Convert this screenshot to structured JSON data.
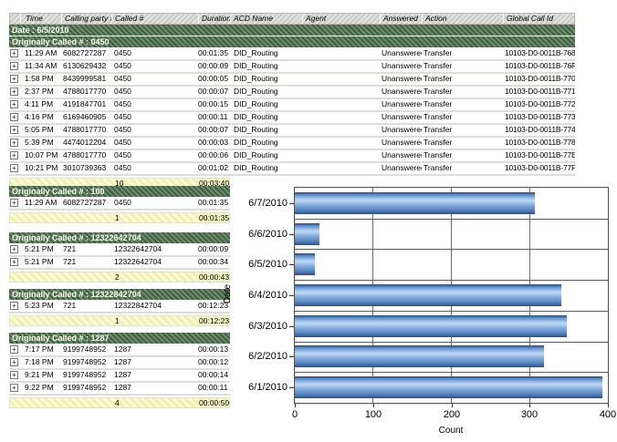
{
  "table": {
    "columns": [
      "Time",
      "Calling party #",
      "Called #",
      "Duration",
      "ACD Name",
      "Agent",
      "Answered",
      "Action",
      "Global Call Id"
    ],
    "date_band": "Date : 6/5/2010",
    "groups": [
      {
        "band": "Originally Called # : 0450",
        "full": true,
        "rows": [
          {
            "time": "11:29 AM",
            "calling": "6082727287",
            "called": "0450",
            "duration": "00:01:35",
            "acd": "DID_Routing",
            "agent": "",
            "answered": "Unanswered",
            "action": "Transfer",
            "global_id": "10103-D0-0011B-768"
          },
          {
            "time": "11:34 AM",
            "calling": "6130629432",
            "called": "0450",
            "duration": "00:00:09",
            "acd": "DID_Routing",
            "agent": "",
            "answered": "Unanswered",
            "action": "Transfer",
            "global_id": "10103-D0-0011B-76F"
          },
          {
            "time": "1:58 PM",
            "calling": "8439999581",
            "called": "0450",
            "duration": "00:00:05",
            "acd": "DID_Routing",
            "agent": "",
            "answered": "Unanswered",
            "action": "Transfer",
            "global_id": "10103-D0-0011B-770"
          },
          {
            "time": "2:37 PM",
            "calling": "4788017770",
            "called": "0450",
            "duration": "00:00:07",
            "acd": "DID_Routing",
            "agent": "",
            "answered": "Unanswered",
            "action": "Transfer",
            "global_id": "10103-D0-0011B-771"
          },
          {
            "time": "4:11 PM",
            "calling": "4191847701",
            "called": "0450",
            "duration": "00:00:15",
            "acd": "DID_Routing",
            "agent": "",
            "answered": "Unanswered",
            "action": "Transfer",
            "global_id": "10103-D0-0011B-772"
          },
          {
            "time": "4:16 PM",
            "calling": "6169460905",
            "called": "0450",
            "duration": "00:00:11",
            "acd": "DID_Routing",
            "agent": "",
            "answered": "Unanswered",
            "action": "Transfer",
            "global_id": "10103-D0-0011B-773"
          },
          {
            "time": "5:05 PM",
            "calling": "4788017770",
            "called": "0450",
            "duration": "00:00:07",
            "acd": "DID_Routing",
            "agent": "",
            "answered": "Unanswered",
            "action": "Transfer",
            "global_id": "10103-D0-0011B-774"
          },
          {
            "time": "5:39 PM",
            "calling": "4474012204",
            "called": "0450",
            "duration": "00:00:03",
            "acd": "DID_Routing",
            "agent": "",
            "answered": "Unanswered",
            "action": "Transfer",
            "global_id": "10103-D0-0011B-778"
          },
          {
            "time": "10:07 PM",
            "calling": "4788017770",
            "called": "0450",
            "duration": "00:00:06",
            "acd": "DID_Routing",
            "agent": "",
            "answered": "Unanswered",
            "action": "Transfer",
            "global_id": "10103-D0-0011B-77E"
          },
          {
            "time": "10:21 PM",
            "calling": "3010739363",
            "called": "0450",
            "duration": "00:01:02",
            "acd": "DID_Routing",
            "agent": "",
            "answered": "Unanswered",
            "action": "Transfer",
            "global_id": "10103-D0-0011B-77F"
          }
        ],
        "summary": {
          "count": "10",
          "duration": "00:03:40"
        }
      },
      {
        "band": "Originally Called # : 100",
        "full": false,
        "rows": [
          {
            "time": "11:29 AM",
            "calling": "6082727287",
            "called": "0450",
            "duration": "00:01:35"
          }
        ],
        "summary": {
          "count": "1",
          "duration": "00:01:35"
        }
      },
      {
        "band": "Originally Called # : 12322642704",
        "full": false,
        "rows": [
          {
            "time": "5:21 PM",
            "calling": "721",
            "called": "12322642704",
            "duration": "00:00:09"
          },
          {
            "time": "5:21 PM",
            "calling": "721",
            "called": "12322642704",
            "duration": "00:00:34"
          }
        ],
        "summary": {
          "count": "2",
          "duration": "00:00:43"
        }
      },
      {
        "band": "Originally Called # : 12322842704",
        "full": false,
        "rows": [
          {
            "time": "5:23 PM",
            "calling": "721",
            "called": "12322842704",
            "duration": "00:12:23"
          }
        ],
        "summary": {
          "count": "1",
          "duration": "00:12:23"
        }
      },
      {
        "band": "Originally Called # : 1287",
        "full": false,
        "rows": [
          {
            "time": "7:17 PM",
            "calling": "9199748952",
            "called": "1287",
            "duration": "00:00:13"
          },
          {
            "time": "7:18 PM",
            "calling": "9199748952",
            "called": "1287",
            "duration": "00:00:12"
          },
          {
            "time": "9:21 PM",
            "calling": "9199748952",
            "called": "1287",
            "duration": "00:00:14"
          },
          {
            "time": "9:22 PM",
            "calling": "9199748952",
            "called": "1287",
            "duration": "00:00:11"
          }
        ],
        "summary": {
          "count": "4",
          "duration": "00:00:50"
        }
      }
    ]
  },
  "chart_data": {
    "type": "bar",
    "orientation": "horizontal",
    "title": "",
    "categories": [
      "6/7/2010",
      "6/6/2010",
      "6/5/2010",
      "6/4/2010",
      "6/3/2010",
      "6/2/2010",
      "6/1/2010"
    ],
    "values": [
      307,
      31,
      26,
      340,
      348,
      318,
      393
    ],
    "xlabel": "Count",
    "ylabel": "Date",
    "xlim": [
      0,
      400
    ],
    "xticks": [
      0,
      100,
      200,
      300,
      400
    ],
    "grid": true,
    "legend": "none"
  },
  "icons": {
    "expand": "+"
  },
  "colors": {
    "group_band_dark": "#41603f",
    "group_band_light": "#6d8b6e",
    "summary_yellow": "#f5f5c4",
    "header_gray": "#d6d6d2",
    "bar_blue_light": "#bed8f5",
    "bar_blue_dark": "#2d4d79",
    "row_separator": "#deded9"
  }
}
